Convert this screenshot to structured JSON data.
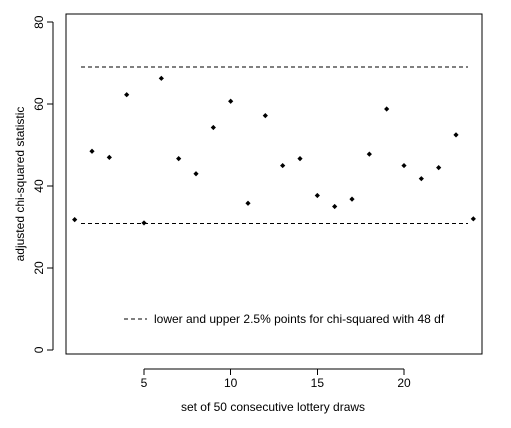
{
  "chart_data": {
    "type": "scatter",
    "xlabel": "set of 50 consecutive lottery draws",
    "ylabel": "adjusted chi-squared statistic",
    "xlim": [
      0.5,
      24.5
    ],
    "ylim": [
      -1,
      82
    ],
    "x_ticks": [
      5,
      10,
      15,
      20
    ],
    "y_ticks": [
      0,
      20,
      40,
      60,
      80
    ],
    "grid": false,
    "legend": {
      "placement": "bottom-center",
      "entries": [
        "lower and upper 2.5% points for chi-squared with 48 df"
      ]
    },
    "reference_lines": [
      {
        "name": "lower 2.5% point",
        "y": 30.8
      },
      {
        "name": "upper 2.5% point",
        "y": 69.1
      }
    ],
    "x": [
      1,
      2,
      3,
      4,
      5,
      6,
      7,
      8,
      9,
      10,
      11,
      12,
      13,
      14,
      15,
      16,
      17,
      18,
      19,
      20,
      21,
      22,
      23,
      24
    ],
    "y": [
      31.8,
      48.5,
      47.0,
      62.3,
      31.0,
      66.3,
      46.7,
      43.0,
      54.3,
      60.7,
      35.8,
      57.2,
      45.0,
      46.7,
      37.7,
      35.0,
      36.8,
      47.8,
      58.8,
      45.0,
      41.8,
      44.5,
      52.5,
      32.0
    ]
  }
}
